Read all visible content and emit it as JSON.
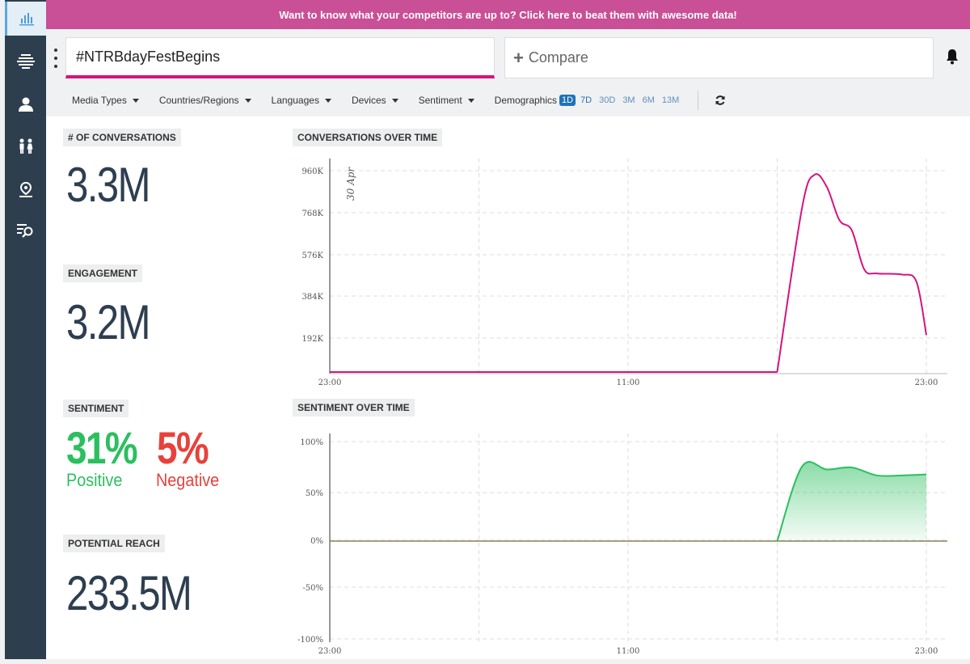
{
  "banner": {
    "text": "Want to know what your competitors are up to? Click here to beat them with awesome data!"
  },
  "search": {
    "value": "#NTRBdayFestBegins"
  },
  "compare": {
    "label": "Compare"
  },
  "sidebar": {
    "items": [
      "chart-bars-icon",
      "layers-icon",
      "user-icon",
      "people-icon",
      "location-icon",
      "list-search-icon"
    ]
  },
  "filters": {
    "media_types": "Media Types",
    "countries": "Countries/Regions",
    "languages": "Languages",
    "devices": "Devices",
    "sentiment": "Sentiment",
    "demographics": "Demographics"
  },
  "ranges": [
    "1D",
    "7D",
    "30D",
    "3M",
    "6M",
    "13M"
  ],
  "selected_range": "1D",
  "metrics": {
    "conversations": {
      "label": "# OF CONVERSATIONS",
      "value": "3.3M"
    },
    "engagement": {
      "label": "ENGAGEMENT",
      "value": "3.2M"
    },
    "sentiment": {
      "label": "SENTIMENT",
      "positive_value": "31%",
      "positive_label": "Positive",
      "negative_value": "5%",
      "negative_label": "Negative"
    },
    "reach": {
      "label": "POTENTIAL REACH",
      "value": "233.5M"
    }
  },
  "colors": {
    "accent": "#d5147e",
    "banner": "#c94f96",
    "positive": "#2cbf5f",
    "negative": "#e8413c",
    "sidebar": "#2d3e4f"
  },
  "chart_data": [
    {
      "type": "line",
      "title": "CONVERSATIONS OVER TIME",
      "annotation": "30 Apr",
      "x_ticks": [
        "23:00",
        "11:00",
        "23:00"
      ],
      "y_ticks": [
        "960K",
        "768K",
        "576K",
        "384K",
        "192K"
      ],
      "ylim": [
        0,
        1000000
      ],
      "grid": true,
      "color": "#d5147e",
      "points": [
        [
          0,
          0
        ],
        [
          1,
          0
        ],
        [
          2,
          0
        ],
        [
          3,
          0
        ],
        [
          4,
          0
        ],
        [
          5,
          0
        ],
        [
          6,
          0
        ],
        [
          7,
          0
        ],
        [
          8,
          0
        ],
        [
          9,
          0
        ],
        [
          10,
          0
        ],
        [
          11,
          0
        ],
        [
          12,
          0
        ],
        [
          13,
          0
        ],
        [
          14,
          0
        ],
        [
          15,
          0
        ],
        [
          16,
          0
        ],
        [
          17,
          0
        ],
        [
          18,
          0
        ],
        [
          19,
          800000
        ],
        [
          19.5,
          960000
        ],
        [
          20,
          900000
        ],
        [
          20.5,
          740000
        ],
        [
          21,
          690000
        ],
        [
          21.5,
          500000
        ],
        [
          22,
          480000
        ],
        [
          23,
          475000
        ],
        [
          23.6,
          440000
        ],
        [
          24,
          180000
        ]
      ]
    },
    {
      "type": "area",
      "title": "SENTIMENT OVER TIME",
      "x_ticks": [
        "23:00",
        "11:00",
        "23:00"
      ],
      "y_ticks": [
        "100%",
        "50%",
        "0%",
        "-50%",
        "-100%"
      ],
      "ylim": [
        -100,
        100
      ],
      "grid": true,
      "color": "#2cbf5f",
      "points": [
        [
          0,
          0
        ],
        [
          1,
          0
        ],
        [
          2,
          0
        ],
        [
          3,
          0
        ],
        [
          4,
          0
        ],
        [
          5,
          0
        ],
        [
          6,
          0
        ],
        [
          7,
          0
        ],
        [
          8,
          0
        ],
        [
          9,
          0
        ],
        [
          10,
          0
        ],
        [
          11,
          0
        ],
        [
          12,
          0
        ],
        [
          13,
          0
        ],
        [
          14,
          0
        ],
        [
          15,
          0
        ],
        [
          16,
          0
        ],
        [
          17,
          0
        ],
        [
          18,
          0
        ],
        [
          19,
          75
        ],
        [
          20,
          72
        ],
        [
          21,
          74
        ],
        [
          22,
          66
        ],
        [
          23,
          66
        ],
        [
          24,
          67
        ]
      ]
    }
  ]
}
